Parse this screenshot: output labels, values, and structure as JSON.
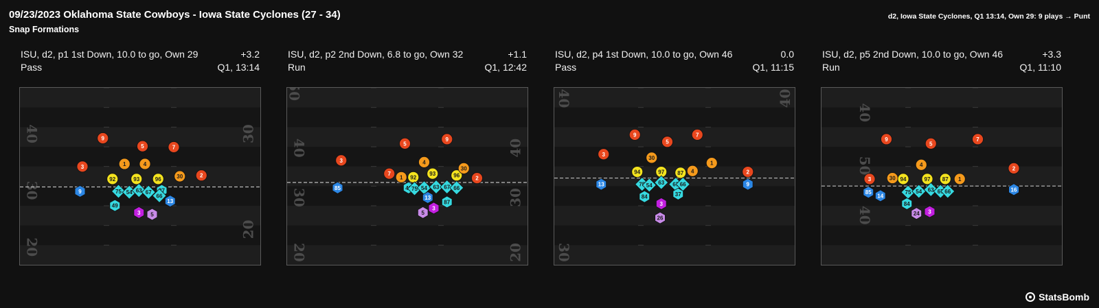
{
  "header": {
    "title": "09/23/2023 Oklahoma State Cowboys - Iowa State Cyclones (27 - 34)",
    "subtitle": "Snap Formations",
    "drive_summary": "d2, Iowa State Cyclones, Q1 13:14, Own 29: 9 plays → Punt"
  },
  "brand": {
    "name": "StatsBomb",
    "icon": "statsbomb-logo-icon"
  },
  "colors": {
    "background": "#111111",
    "field": "#1e1e1e",
    "field_band": "#151515",
    "los": "#bdbdbd",
    "red": "#e8471e",
    "orange": "#f59a1c",
    "yellow": "#f4e31f",
    "cyan": "#36d9e0",
    "blue": "#2b86e4",
    "magenta": "#c21fe0",
    "lavender": "#c88be8"
  },
  "chart_data": [
    {
      "type": "scatter",
      "title": "ISU, d2, p1 1st Down, 10.0 to go, Own 29",
      "play_type": "Pass",
      "epa": "+3.2",
      "clock": "Q1, 13:14",
      "yard_labels": [
        {
          "text": "40",
          "x": 0.05,
          "y": 0.26,
          "rot": 90
        },
        {
          "text": "30",
          "x": 0.95,
          "y": 0.26,
          "rot": -90
        },
        {
          "text": "30",
          "x": 0.05,
          "y": 0.58,
          "rot": 90
        },
        {
          "text": "20",
          "x": 0.95,
          "y": 0.8,
          "rot": -90
        },
        {
          "text": "20",
          "x": 0.05,
          "y": 0.9,
          "rot": 90
        }
      ],
      "los_y": 0.56,
      "players": [
        {
          "n": "9",
          "x": 0.345,
          "y": 0.285,
          "c": "red",
          "s": "circle"
        },
        {
          "n": "5",
          "x": 0.51,
          "y": 0.33,
          "c": "red",
          "s": "circle"
        },
        {
          "n": "7",
          "x": 0.64,
          "y": 0.335,
          "c": "red",
          "s": "circle"
        },
        {
          "n": "3",
          "x": 0.26,
          "y": 0.445,
          "c": "red",
          "s": "circle"
        },
        {
          "n": "1",
          "x": 0.435,
          "y": 0.43,
          "c": "orange",
          "s": "circle"
        },
        {
          "n": "4",
          "x": 0.52,
          "y": 0.43,
          "c": "orange",
          "s": "circle"
        },
        {
          "n": "30",
          "x": 0.665,
          "y": 0.5,
          "c": "orange",
          "s": "circle"
        },
        {
          "n": "2",
          "x": 0.755,
          "y": 0.495,
          "c": "red",
          "s": "circle"
        },
        {
          "n": "92",
          "x": 0.385,
          "y": 0.515,
          "c": "yellow",
          "s": "circle"
        },
        {
          "n": "93",
          "x": 0.485,
          "y": 0.515,
          "c": "yellow",
          "s": "circle"
        },
        {
          "n": "96",
          "x": 0.575,
          "y": 0.515,
          "c": "yellow",
          "s": "circle"
        },
        {
          "n": "9",
          "x": 0.25,
          "y": 0.585,
          "c": "blue",
          "s": "hex"
        },
        {
          "n": "75",
          "x": 0.41,
          "y": 0.585,
          "c": "cyan",
          "s": "diamond"
        },
        {
          "n": "54",
          "x": 0.455,
          "y": 0.59,
          "c": "cyan",
          "s": "diamond"
        },
        {
          "n": "63",
          "x": 0.495,
          "y": 0.58,
          "c": "cyan",
          "s": "diamond"
        },
        {
          "n": "67",
          "x": 0.535,
          "y": 0.59,
          "c": "cyan",
          "s": "diamond"
        },
        {
          "n": "87",
          "x": 0.59,
          "y": 0.58,
          "c": "cyan",
          "s": "hex"
        },
        {
          "n": "66",
          "x": 0.58,
          "y": 0.61,
          "c": "cyan",
          "s": "diamond"
        },
        {
          "n": "49",
          "x": 0.395,
          "y": 0.665,
          "c": "cyan",
          "s": "hex"
        },
        {
          "n": "13",
          "x": 0.625,
          "y": 0.64,
          "c": "blue",
          "s": "hex"
        },
        {
          "n": "3",
          "x": 0.495,
          "y": 0.705,
          "c": "magenta",
          "s": "hex"
        },
        {
          "n": "5",
          "x": 0.55,
          "y": 0.715,
          "c": "lavender",
          "s": "hex"
        }
      ]
    },
    {
      "type": "scatter",
      "title": "ISU, d2, p2 2nd Down, 6.8 to go, Own 32",
      "play_type": "Run",
      "epa": "+1.1",
      "clock": "Q1, 12:42",
      "yard_labels": [
        {
          "text": "50",
          "x": 0.03,
          "y": 0.02,
          "rot": 90
        },
        {
          "text": "40",
          "x": 0.05,
          "y": 0.34,
          "rot": 90
        },
        {
          "text": "40",
          "x": 0.95,
          "y": 0.34,
          "rot": -90
        },
        {
          "text": "30",
          "x": 0.05,
          "y": 0.62,
          "rot": 90
        },
        {
          "text": "30",
          "x": 0.95,
          "y": 0.62,
          "rot": -90
        },
        {
          "text": "20",
          "x": 0.05,
          "y": 0.93,
          "rot": 90
        },
        {
          "text": "20",
          "x": 0.95,
          "y": 0.93,
          "rot": -90
        }
      ],
      "los_y": 0.535,
      "players": [
        {
          "n": "5",
          "x": 0.49,
          "y": 0.315,
          "c": "red",
          "s": "circle"
        },
        {
          "n": "9",
          "x": 0.665,
          "y": 0.29,
          "c": "red",
          "s": "circle"
        },
        {
          "n": "3",
          "x": 0.225,
          "y": 0.41,
          "c": "red",
          "s": "circle"
        },
        {
          "n": "4",
          "x": 0.57,
          "y": 0.42,
          "c": "orange",
          "s": "circle"
        },
        {
          "n": "7",
          "x": 0.425,
          "y": 0.485,
          "c": "red",
          "s": "circle"
        },
        {
          "n": "1",
          "x": 0.475,
          "y": 0.505,
          "c": "orange",
          "s": "circle"
        },
        {
          "n": "92",
          "x": 0.525,
          "y": 0.505,
          "c": "yellow",
          "s": "circle"
        },
        {
          "n": "93",
          "x": 0.605,
          "y": 0.485,
          "c": "yellow",
          "s": "circle"
        },
        {
          "n": "96",
          "x": 0.705,
          "y": 0.495,
          "c": "yellow",
          "s": "circle"
        },
        {
          "n": "30",
          "x": 0.735,
          "y": 0.455,
          "c": "orange",
          "s": "circle"
        },
        {
          "n": "2",
          "x": 0.79,
          "y": 0.51,
          "c": "red",
          "s": "circle"
        },
        {
          "n": "85",
          "x": 0.21,
          "y": 0.565,
          "c": "blue",
          "s": "hex"
        },
        {
          "n": "49",
          "x": 0.505,
          "y": 0.565,
          "c": "cyan",
          "s": "hex"
        },
        {
          "n": "75",
          "x": 0.53,
          "y": 0.57,
          "c": "cyan",
          "s": "diamond"
        },
        {
          "n": "54",
          "x": 0.57,
          "y": 0.565,
          "c": "cyan",
          "s": "diamond"
        },
        {
          "n": "63",
          "x": 0.62,
          "y": 0.56,
          "c": "cyan",
          "s": "diamond"
        },
        {
          "n": "67",
          "x": 0.665,
          "y": 0.56,
          "c": "cyan",
          "s": "diamond"
        },
        {
          "n": "66",
          "x": 0.705,
          "y": 0.565,
          "c": "cyan",
          "s": "diamond"
        },
        {
          "n": "13",
          "x": 0.585,
          "y": 0.62,
          "c": "blue",
          "s": "hex"
        },
        {
          "n": "87",
          "x": 0.665,
          "y": 0.645,
          "c": "cyan",
          "s": "hex"
        },
        {
          "n": "3",
          "x": 0.61,
          "y": 0.68,
          "c": "magenta",
          "s": "hex"
        },
        {
          "n": "5",
          "x": 0.565,
          "y": 0.705,
          "c": "lavender",
          "s": "hex"
        }
      ]
    },
    {
      "type": "scatter",
      "title": "ISU, d2, p4 1st Down, 10.0 to go, Own 46",
      "play_type": "Pass",
      "epa": "0.0",
      "clock": "Q1, 11:15",
      "yard_labels": [
        {
          "text": "40",
          "x": 0.04,
          "y": 0.06,
          "rot": 90
        },
        {
          "text": "40",
          "x": 0.96,
          "y": 0.06,
          "rot": -90
        },
        {
          "text": "30",
          "x": 0.04,
          "y": 0.93,
          "rot": 90
        }
      ],
      "los_y": 0.51,
      "players": [
        {
          "n": "9",
          "x": 0.335,
          "y": 0.265,
          "c": "red",
          "s": "circle"
        },
        {
          "n": "7",
          "x": 0.595,
          "y": 0.265,
          "c": "red",
          "s": "circle"
        },
        {
          "n": "5",
          "x": 0.47,
          "y": 0.305,
          "c": "red",
          "s": "circle"
        },
        {
          "n": "3",
          "x": 0.205,
          "y": 0.375,
          "c": "red",
          "s": "circle"
        },
        {
          "n": "30",
          "x": 0.405,
          "y": 0.395,
          "c": "orange",
          "s": "circle"
        },
        {
          "n": "1",
          "x": 0.655,
          "y": 0.425,
          "c": "orange",
          "s": "circle"
        },
        {
          "n": "94",
          "x": 0.345,
          "y": 0.475,
          "c": "yellow",
          "s": "circle"
        },
        {
          "n": "97",
          "x": 0.445,
          "y": 0.475,
          "c": "yellow",
          "s": "circle"
        },
        {
          "n": "87",
          "x": 0.525,
          "y": 0.48,
          "c": "yellow",
          "s": "circle"
        },
        {
          "n": "4",
          "x": 0.575,
          "y": 0.47,
          "c": "orange",
          "s": "circle"
        },
        {
          "n": "2",
          "x": 0.805,
          "y": 0.475,
          "c": "red",
          "s": "circle"
        },
        {
          "n": "13",
          "x": 0.195,
          "y": 0.545,
          "c": "blue",
          "s": "hex"
        },
        {
          "n": "75",
          "x": 0.365,
          "y": 0.545,
          "c": "cyan",
          "s": "diamond"
        },
        {
          "n": "54",
          "x": 0.395,
          "y": 0.55,
          "c": "cyan",
          "s": "diamond"
        },
        {
          "n": "63",
          "x": 0.445,
          "y": 0.535,
          "c": "cyan",
          "s": "diamond"
        },
        {
          "n": "67",
          "x": 0.505,
          "y": 0.545,
          "c": "cyan",
          "s": "diamond"
        },
        {
          "n": "66",
          "x": 0.535,
          "y": 0.545,
          "c": "cyan",
          "s": "diamond"
        },
        {
          "n": "9",
          "x": 0.805,
          "y": 0.545,
          "c": "blue",
          "s": "hex"
        },
        {
          "n": "84",
          "x": 0.375,
          "y": 0.615,
          "c": "cyan",
          "s": "hex"
        },
        {
          "n": "37",
          "x": 0.515,
          "y": 0.6,
          "c": "cyan",
          "s": "hex"
        },
        {
          "n": "3",
          "x": 0.445,
          "y": 0.655,
          "c": "magenta",
          "s": "hex"
        },
        {
          "n": "26",
          "x": 0.44,
          "y": 0.735,
          "c": "lavender",
          "s": "hex"
        }
      ]
    },
    {
      "type": "scatter",
      "title": "ISU, d2, p5 2nd Down, 10.0 to go, Own 46",
      "play_type": "Run",
      "epa": "+3.3",
      "clock": "Q1, 11:10",
      "yard_labels": [
        {
          "text": "40",
          "x": 0.18,
          "y": 0.14,
          "rot": 90
        },
        {
          "text": "50",
          "x": 0.18,
          "y": 0.44,
          "rot": 90
        },
        {
          "text": "40",
          "x": 0.18,
          "y": 0.72,
          "rot": 90
        }
      ],
      "los_y": 0.555,
      "players": [
        {
          "n": "9",
          "x": 0.27,
          "y": 0.29,
          "c": "red",
          "s": "circle"
        },
        {
          "n": "5",
          "x": 0.455,
          "y": 0.315,
          "c": "red",
          "s": "circle"
        },
        {
          "n": "7",
          "x": 0.65,
          "y": 0.29,
          "c": "red",
          "s": "circle"
        },
        {
          "n": "4",
          "x": 0.415,
          "y": 0.435,
          "c": "orange",
          "s": "circle"
        },
        {
          "n": "2",
          "x": 0.8,
          "y": 0.455,
          "c": "red",
          "s": "circle"
        },
        {
          "n": "3",
          "x": 0.2,
          "y": 0.515,
          "c": "red",
          "s": "circle"
        },
        {
          "n": "30",
          "x": 0.295,
          "y": 0.51,
          "c": "orange",
          "s": "circle"
        },
        {
          "n": "94",
          "x": 0.34,
          "y": 0.515,
          "c": "yellow",
          "s": "circle"
        },
        {
          "n": "97",
          "x": 0.44,
          "y": 0.515,
          "c": "yellow",
          "s": "circle"
        },
        {
          "n": "87",
          "x": 0.515,
          "y": 0.515,
          "c": "yellow",
          "s": "circle"
        },
        {
          "n": "1",
          "x": 0.575,
          "y": 0.515,
          "c": "orange",
          "s": "circle"
        },
        {
          "n": "85",
          "x": 0.195,
          "y": 0.59,
          "c": "blue",
          "s": "hex"
        },
        {
          "n": "14",
          "x": 0.245,
          "y": 0.61,
          "c": "blue",
          "s": "hex"
        },
        {
          "n": "75",
          "x": 0.36,
          "y": 0.59,
          "c": "cyan",
          "s": "diamond"
        },
        {
          "n": "54",
          "x": 0.405,
          "y": 0.585,
          "c": "cyan",
          "s": "diamond"
        },
        {
          "n": "63",
          "x": 0.455,
          "y": 0.575,
          "c": "cyan",
          "s": "diamond"
        },
        {
          "n": "67",
          "x": 0.495,
          "y": 0.585,
          "c": "cyan",
          "s": "diamond"
        },
        {
          "n": "66",
          "x": 0.525,
          "y": 0.585,
          "c": "cyan",
          "s": "diamond"
        },
        {
          "n": "16",
          "x": 0.8,
          "y": 0.575,
          "c": "blue",
          "s": "hex"
        },
        {
          "n": "84",
          "x": 0.355,
          "y": 0.655,
          "c": "cyan",
          "s": "hex"
        },
        {
          "n": "24",
          "x": 0.395,
          "y": 0.71,
          "c": "lavender",
          "s": "hex"
        },
        {
          "n": "3",
          "x": 0.45,
          "y": 0.7,
          "c": "magenta",
          "s": "hex"
        }
      ]
    }
  ]
}
